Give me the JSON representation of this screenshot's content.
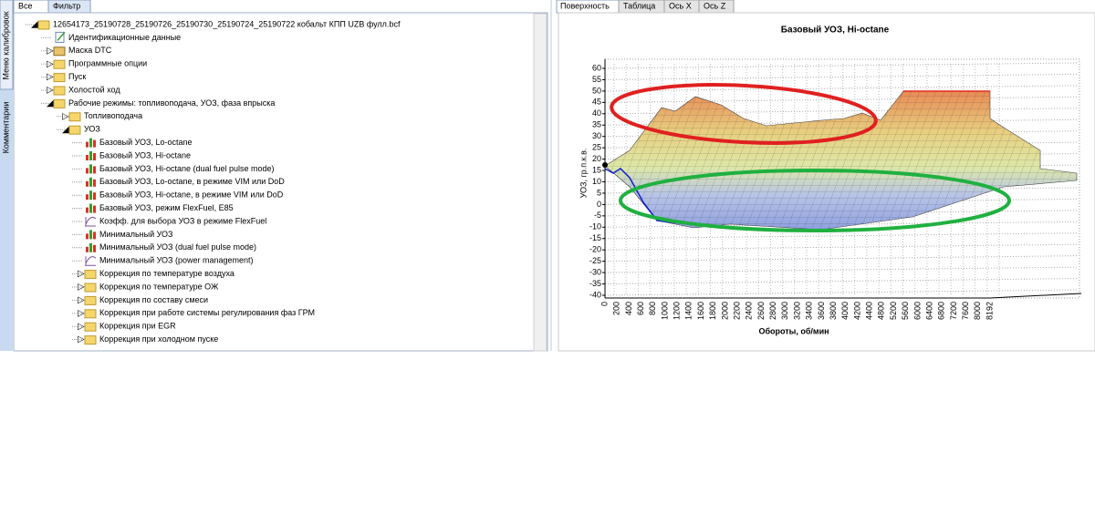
{
  "sidebar_tabs": [
    "Меню калибровок",
    "Комментарии"
  ],
  "left_tabs": [
    "Все",
    "Фильтр"
  ],
  "tree": {
    "label": "12654173_25190728_25190726_25190730_25190724_25190722 кобальт КПП UZB фулл.bcf",
    "icon": "folder",
    "expanded": true,
    "children": [
      {
        "label": "Идентификационные данные",
        "icon": "doc"
      },
      {
        "label": "Маска DTC",
        "icon": "mask",
        "expanded": false
      },
      {
        "label": "Программные опции",
        "icon": "folder",
        "expanded": false
      },
      {
        "label": "Пуск",
        "icon": "folder",
        "expanded": false
      },
      {
        "label": "Холостой ход",
        "icon": "folder",
        "expanded": false
      },
      {
        "label": "Рабочие режимы: топливоподача, УОЗ, фаза впрыска",
        "icon": "folder",
        "expanded": true,
        "children": [
          {
            "label": "Топливоподача",
            "icon": "folder",
            "expanded": false
          },
          {
            "label": "УОЗ",
            "icon": "folder",
            "expanded": true,
            "children": [
              {
                "label": "Базовый УОЗ, Lo-octane",
                "icon": "chart"
              },
              {
                "label": "Базовый УОЗ, Hi-octane",
                "icon": "chart"
              },
              {
                "label": "Базовый УОЗ, Hi-octane (dual fuel pulse mode)",
                "icon": "chart"
              },
              {
                "label": "Базовый УОЗ, Lo-octane, в режиме VIM или DoD",
                "icon": "chart"
              },
              {
                "label": "Базовый УОЗ, Hi-octane, в режиме VIM или DoD",
                "icon": "chart"
              },
              {
                "label": "Базовый УОЗ, режим FlexFuel, E85",
                "icon": "chart"
              },
              {
                "label": "Коэфф. для выбора УОЗ в режиме FlexFuel",
                "icon": "curve"
              },
              {
                "label": "Минимальный УОЗ",
                "icon": "chart"
              },
              {
                "label": "Минимальный УОЗ (dual fuel pulse mode)",
                "icon": "chart"
              },
              {
                "label": "Минимальный УОЗ (power management)",
                "icon": "curve"
              },
              {
                "label": "Коррекция по температуре воздуха",
                "icon": "folder",
                "expanded": false
              },
              {
                "label": "Коррекция по температуре ОЖ",
                "icon": "folder",
                "expanded": false
              },
              {
                "label": "Коррекция по составу смеси",
                "icon": "folder",
                "expanded": false
              },
              {
                "label": "Коррекция при работе системы регулирования фаз ГРМ",
                "icon": "folder",
                "expanded": false
              },
              {
                "label": "Коррекция при EGR",
                "icon": "folder",
                "expanded": false
              },
              {
                "label": "Коррекция при холодном пуске",
                "icon": "folder",
                "expanded": false
              }
            ]
          }
        ]
      }
    ]
  },
  "right_tabs": [
    "Поверхность",
    "Таблица",
    "Ось X",
    "Ось Z"
  ],
  "chart": {
    "title": "Базовый УОЗ, Hi-octane",
    "y_label": "УОЗ, гр.п.к.в.",
    "x_label": "Обороты, об/мин",
    "yticks": [
      60,
      55,
      50,
      45,
      40,
      35,
      30,
      25,
      20,
      15,
      10,
      5,
      0,
      -5,
      -10,
      -15,
      -20,
      -25,
      -30,
      -35,
      -40
    ],
    "xticks": [
      0,
      200,
      400,
      600,
      800,
      1000,
      1200,
      1400,
      1600,
      1800,
      2000,
      2200,
      2400,
      2600,
      2800,
      3000,
      3200,
      3400,
      3600,
      3800,
      4000,
      4200,
      4400,
      4800,
      5200,
      5600,
      6000,
      6400,
      6800,
      7200,
      7600,
      8000,
      8192
    ]
  }
}
